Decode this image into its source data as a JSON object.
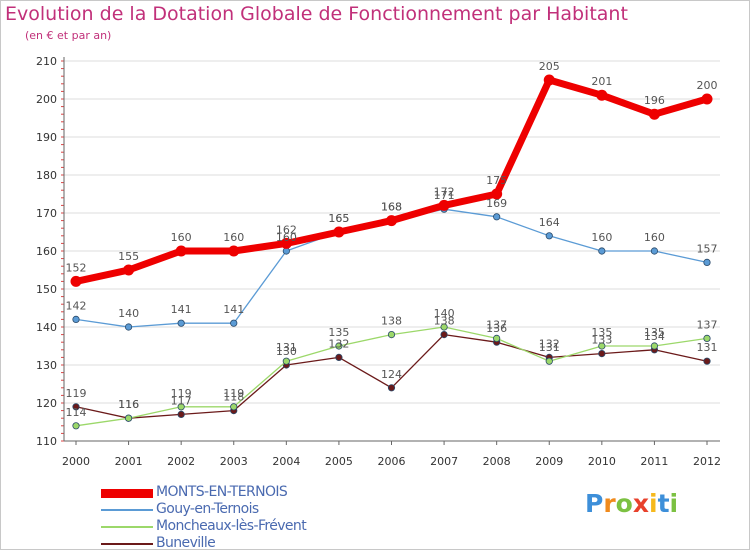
{
  "chart_data": {
    "type": "line",
    "title": "Evolution de la Dotation Globale de Fonctionnement par Habitant",
    "subtitle": "(en € et par an)",
    "xlabel": "",
    "ylabel": "",
    "categories": [
      "2000",
      "2001",
      "2002",
      "2003",
      "2004",
      "2005",
      "2006",
      "2007",
      "2008",
      "2009",
      "2010",
      "2011",
      "2012"
    ],
    "y_ticks": [
      110,
      120,
      130,
      140,
      150,
      160,
      170,
      180,
      190,
      200,
      210
    ],
    "ylim": [
      110,
      210
    ],
    "grid": "horizontal",
    "legend_position": "bottom-left",
    "series": [
      {
        "name": "MONTS-EN-TERNOIS",
        "color": "#ee0000",
        "values": [
          152,
          155,
          160,
          160,
          162,
          165,
          168,
          172,
          175,
          205,
          201,
          196,
          200
        ]
      },
      {
        "name": "Gouy-en-Ternois",
        "color": "#5b9bd5",
        "values": [
          142,
          140,
          141,
          141,
          160,
          165,
          168,
          171,
          169,
          164,
          160,
          160,
          157
        ]
      },
      {
        "name": "Moncheaux-lès-Frévent",
        "color": "#9cd86a",
        "values": [
          114,
          116,
          119,
          119,
          131,
          135,
          138,
          140,
          137,
          131,
          135,
          135,
          137
        ]
      },
      {
        "name": "Buneville",
        "color": "#6b1a1a",
        "values": [
          119,
          116,
          117,
          118,
          130,
          132,
          124,
          138,
          136,
          132,
          133,
          134,
          131
        ]
      }
    ]
  },
  "logo": {
    "letters": [
      "P",
      "r",
      "o",
      "x",
      "i",
      "t",
      "i"
    ],
    "colors": [
      "#3d8fd9",
      "#f08a1c",
      "#7cc142",
      "#e8412c",
      "#f6b91d",
      "#3d8fd9",
      "#7cc142"
    ]
  }
}
